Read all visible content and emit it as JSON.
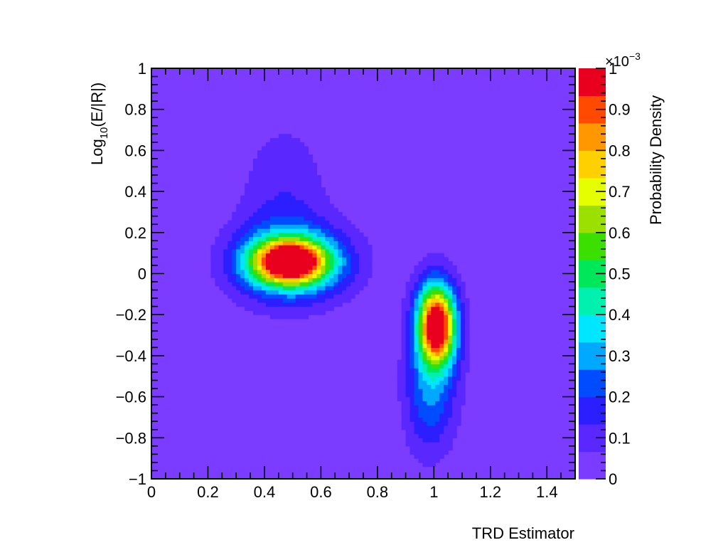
{
  "chart_data": {
    "type": "heatmap",
    "title": "",
    "xlabel": "TRD Estimator",
    "ylabel_main": "Log",
    "ylabel_sub": "10",
    "ylabel_rest": "(E/|R|)",
    "zlabel": "Probability Density",
    "z_exponent_prefix": "×10",
    "z_exponent_power": "−3",
    "xlim": [
      0,
      1.5
    ],
    "ylim": [
      -1,
      1
    ],
    "zlim": [
      0,
      1
    ],
    "x_ticks": [
      0,
      0.2,
      0.4,
      0.6,
      0.8,
      1,
      1.2,
      1.4
    ],
    "x_tick_labels": [
      "0",
      "0.2",
      "0.4",
      "0.6",
      "0.8",
      "1",
      "1.2",
      "1.4"
    ],
    "y_ticks": [
      1,
      0.8,
      0.6,
      0.4,
      0.2,
      0,
      -0.2,
      -0.4,
      -0.6,
      -0.8,
      -1
    ],
    "y_tick_labels": [
      "1",
      "0.8",
      "0.6",
      "0.4",
      "0.2",
      "0",
      "−0.2",
      "−0.4",
      "−0.6",
      "−0.8",
      "−1"
    ],
    "z_ticks": [
      0,
      0.1,
      0.2,
      0.3,
      0.4,
      0.5,
      0.6,
      0.7,
      0.8,
      0.9,
      1
    ],
    "z_tick_labels": [
      "0",
      "0.1",
      "0.2",
      "0.3",
      "0.4",
      "0.5",
      "0.6",
      "0.7",
      "0.8",
      "0.9",
      "1"
    ],
    "colormap": [
      "#7b3cff",
      "#5a28ff",
      "#2b1fff",
      "#004cff",
      "#00a8ff",
      "#00e6ff",
      "#00f0b0",
      "#00e85a",
      "#3ce000",
      "#9be000",
      "#e6ff00",
      "#ffd000",
      "#ff9800",
      "#ff4a00",
      "#e8001e"
    ],
    "background_value": 0,
    "clusters": [
      {
        "x": 0.49,
        "y": 0.06,
        "sx": 0.09,
        "sy": 0.075,
        "peak": 1.0
      },
      {
        "x": 0.5,
        "y": 0.05,
        "sx": 0.16,
        "sy": 0.14,
        "peak": 0.3
      },
      {
        "x": 0.47,
        "y": 0.35,
        "sx": 0.12,
        "sy": 0.3,
        "peak": 0.12
      },
      {
        "x": 1.01,
        "y": -0.25,
        "sx": 0.045,
        "sy": 0.13,
        "peak": 1.0
      },
      {
        "x": 1.0,
        "y": -0.42,
        "sx": 0.07,
        "sy": 0.28,
        "peak": 0.22
      },
      {
        "x": 0.97,
        "y": -0.65,
        "sx": 0.06,
        "sy": 0.18,
        "peak": 0.1
      }
    ]
  }
}
